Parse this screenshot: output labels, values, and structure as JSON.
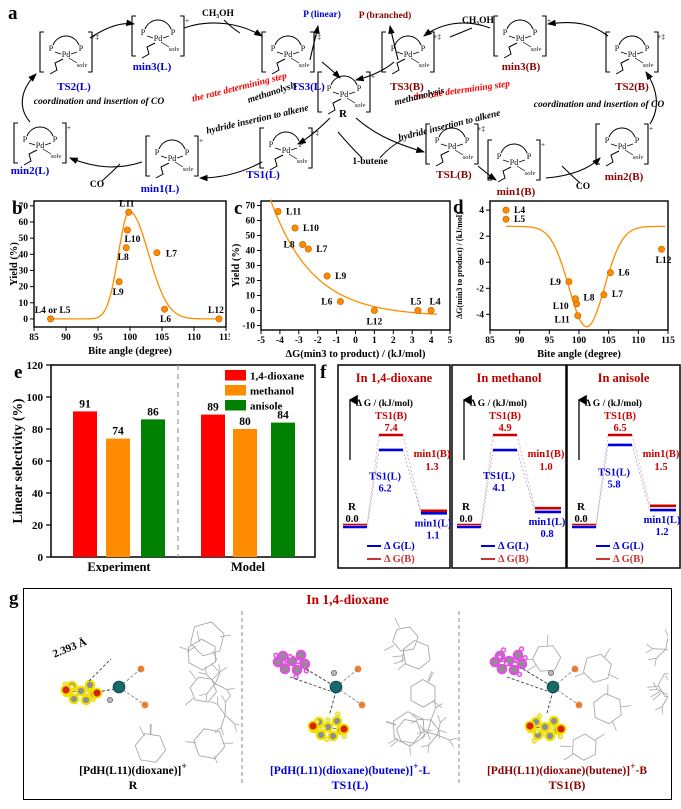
{
  "figure": {
    "panel_labels": {
      "a": "a",
      "b": "b",
      "c": "c",
      "d": "d",
      "e": "e",
      "f": "f",
      "g": "g"
    }
  },
  "colors": {
    "orange": "#FF8C00",
    "orange_dark": "#D06A00",
    "blue": "#0000DD",
    "dark_red": "#8B0000",
    "bright_red": "#C00000",
    "red": "#FF0000",
    "bar_red": "#FF0000",
    "bar_orange": "#FF8C00",
    "bar_green": "#008000",
    "pd_teal": "#166A6A",
    "p_orange": "#F08030",
    "o_red": "#DD2200",
    "highlight_yellow": "#F0E000",
    "highlight_magenta": "#E24FE2",
    "wire_gray": "#A8A8A8"
  },
  "panel_a": {
    "complexes": [
      {
        "name": "TS2(L)",
        "color": "blue",
        "charge": "+‡"
      },
      {
        "name": "min3(L)",
        "color": "blue",
        "charge": "+"
      },
      {
        "name": "TS3(L)",
        "color": "blue",
        "charge": "+‡"
      },
      {
        "name": "min2(L)",
        "color": "blue",
        "charge": "+"
      },
      {
        "name": "min1(L)",
        "color": "blue",
        "charge": "+"
      },
      {
        "name": "TS1(L)",
        "color": "blue",
        "charge": "+‡"
      },
      {
        "name": "R",
        "color": "black",
        "charge": "+"
      },
      {
        "name": "TS3(B)",
        "color": "dark_red",
        "charge": "+‡"
      },
      {
        "name": "min3(B)",
        "color": "dark_red",
        "charge": "+"
      },
      {
        "name": "TS2(B)",
        "color": "dark_red",
        "charge": "+‡"
      },
      {
        "name": "TSL(B)",
        "color": "dark_red",
        "charge": "+‡"
      },
      {
        "name": "min1(B)",
        "color": "dark_red",
        "charge": "+"
      },
      {
        "name": "min2(B)",
        "color": "dark_red",
        "charge": "+"
      }
    ],
    "annotations": [
      {
        "text": "CH₃OH",
        "color": "black",
        "italic": false
      },
      {
        "text": "CH₃OH",
        "color": "black",
        "italic": false
      },
      {
        "text": "P (linear)",
        "color": "blue",
        "italic": false
      },
      {
        "text": "P (branched)",
        "color": "dark_red",
        "italic": false
      },
      {
        "text": "the rate determining step",
        "color": "red",
        "italic": true
      },
      {
        "text": "the rate determining step",
        "color": "red",
        "italic": true
      },
      {
        "text": "methanolysis",
        "color": "black",
        "italic": true
      },
      {
        "text": "methanolysis",
        "color": "black",
        "italic": true
      },
      {
        "text": "coordination and insertion of CO",
        "color": "black",
        "italic": true
      },
      {
        "text": "coordination and insertion of CO",
        "color": "black",
        "italic": true
      },
      {
        "text": "hydride insertion to alkene",
        "color": "black",
        "italic": true
      },
      {
        "text": "hydride insertion to alkene",
        "color": "black",
        "italic": true
      },
      {
        "text": "1-butene",
        "color": "black",
        "italic": false
      },
      {
        "text": "CO",
        "color": "black",
        "italic": false
      },
      {
        "text": "CO",
        "color": "black",
        "italic": false
      }
    ]
  },
  "chart_data": [
    {
      "id": "b",
      "type": "scatter",
      "xlabel": "Bite angle (degree)",
      "ylabel": "Yield (%)",
      "xlim": [
        85,
        115
      ],
      "xticks": [
        85,
        90,
        95,
        100,
        105,
        110,
        115
      ],
      "ylim": [
        -5,
        73
      ],
      "yticks": [
        0,
        10,
        20,
        30,
        40,
        50,
        60,
        70
      ],
      "grid": false,
      "points": [
        {
          "label": "L4 or L5",
          "x": 87.6,
          "y": 0
        },
        {
          "label": "L9",
          "x": 98.3,
          "y": 23
        },
        {
          "label": "L8",
          "x": 99.4,
          "y": 44
        },
        {
          "label": "L10",
          "x": 99.6,
          "y": 55
        },
        {
          "label": "L11",
          "x": 99.8,
          "y": 66
        },
        {
          "label": "L7",
          "x": 104.2,
          "y": 41
        },
        {
          "label": "L6",
          "x": 105.4,
          "y": 6
        },
        {
          "label": "L12",
          "x": 113.9,
          "y": 0
        }
      ],
      "fit_curve": "asymmetric peak centered near bite angle 100"
    },
    {
      "id": "c",
      "type": "scatter",
      "xlabel": "ΔG(min3 to product) / (kJ/mol)",
      "ylabel": "Yield (%)",
      "xlim": [
        -5,
        5
      ],
      "xticks": [
        -5,
        -4,
        -3,
        -2,
        -1,
        0,
        1,
        2,
        3,
        4,
        5
      ],
      "ylim": [
        -13,
        73
      ],
      "yticks": [
        -10,
        0,
        10,
        20,
        30,
        40,
        50,
        60,
        70
      ],
      "grid": false,
      "points": [
        {
          "label": "L11",
          "x": -4.1,
          "y": 66
        },
        {
          "label": "L10",
          "x": -3.2,
          "y": 55
        },
        {
          "label": "L8",
          "x": -2.8,
          "y": 44
        },
        {
          "label": "L7",
          "x": -2.5,
          "y": 41
        },
        {
          "label": "L9",
          "x": -1.5,
          "y": 23
        },
        {
          "label": "L6",
          "x": -0.8,
          "y": 6
        },
        {
          "label": "L12",
          "x": 1.0,
          "y": 0
        },
        {
          "label": "L5",
          "x": 3.3,
          "y": 0
        },
        {
          "label": "L4",
          "x": 4.0,
          "y": 0
        }
      ],
      "fit_curve": "exponential decay"
    },
    {
      "id": "d",
      "type": "scatter",
      "xlabel": "Bite angle (degree)",
      "ylabel": "ΔG(min3 to product) / (kJ/mol)",
      "xlim": [
        85,
        115
      ],
      "xticks": [
        85,
        90,
        95,
        100,
        105,
        110,
        115
      ],
      "ylim": [
        -5.2,
        4.7
      ],
      "yticks": [
        -4,
        -2,
        0,
        2,
        4
      ],
      "grid": false,
      "points": [
        {
          "label": "L4",
          "x": 87.7,
          "y": 4.0
        },
        {
          "label": "L5",
          "x": 87.7,
          "y": 3.3
        },
        {
          "label": "L9",
          "x": 98.3,
          "y": -1.5
        },
        {
          "label": "L8",
          "x": 99.4,
          "y": -2.8
        },
        {
          "label": "L10",
          "x": 99.6,
          "y": -3.2
        },
        {
          "label": "L11",
          "x": 99.8,
          "y": -4.1
        },
        {
          "label": "L7",
          "x": 104.2,
          "y": -2.5
        },
        {
          "label": "L6",
          "x": 105.3,
          "y": -0.8
        },
        {
          "label": "L12",
          "x": 113.9,
          "y": 1.0
        }
      ],
      "fit_curve": "inverted bell dipping near bite angle 101"
    },
    {
      "id": "e",
      "type": "bar",
      "ylabel": "Linear selectivity (%)",
      "ylim": [
        0,
        120
      ],
      "yticks": [
        0,
        20,
        40,
        60,
        80,
        100,
        120
      ],
      "categories": [
        "Experiment",
        "Model"
      ],
      "series": [
        {
          "name": "1,4-dioxane",
          "color": "#FF0000",
          "values": [
            91,
            89
          ]
        },
        {
          "name": "methanol",
          "color": "#FF8C00",
          "values": [
            74,
            80
          ]
        },
        {
          "name": "anisole",
          "color": "#008000",
          "values": [
            86,
            84
          ]
        }
      ],
      "legend_position": "top-right",
      "divider": "dashed vertical line between Experiment and Model"
    }
  ],
  "panel_f": {
    "axis_label": "Δ G / (kJ/mol)",
    "species_labels": {
      "R": "R",
      "TS1L": "TS1(L)",
      "TS1B": "TS1(B)",
      "min1L": "min1(L)",
      "min1B": "min1(B)"
    },
    "legend": [
      {
        "label": "Δ G(L)",
        "color": "#0000DD"
      },
      {
        "label": "Δ G(B)",
        "color": "#CC3333"
      }
    ],
    "diagrams": [
      {
        "title": "In 1,4-dioxane",
        "R": 0.0,
        "TS1B": 7.4,
        "TS1L": 6.2,
        "min1B": 1.3,
        "min1L": 1.1
      },
      {
        "title": "In methanol",
        "R": 0.0,
        "TS1B": 4.9,
        "TS1L": 4.1,
        "min1B": 1.0,
        "min1L": 0.8
      },
      {
        "title": "In anisole",
        "R": 0.0,
        "TS1B": 6.5,
        "TS1L": 5.8,
        "min1B": 1.5,
        "min1L": 1.2
      }
    ]
  },
  "panel_g": {
    "title": "In 1,4-dioxane",
    "structures": [
      {
        "formula": "[PdH(L11)(dioxane)]",
        "charge": "+",
        "suffix": "",
        "name": "R",
        "color": "#000000",
        "annotation": "2.393 Å"
      },
      {
        "formula": "[PdH(L11)(dioxane)(butene)]",
        "charge": "+",
        "suffix": "-L",
        "name": "TS1(L)",
        "color": "#0000DD",
        "annotation": ""
      },
      {
        "formula": "[PdH(L11)(dioxane)(butene)]",
        "charge": "+",
        "suffix": "-B",
        "name": "TS1(B)",
        "color": "#8B0000",
        "annotation": ""
      }
    ]
  }
}
